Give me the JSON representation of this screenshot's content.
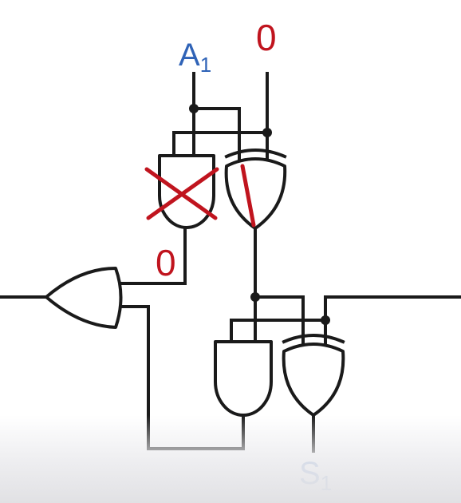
{
  "labels": {
    "input_a_main": "A",
    "input_a_sub": "1",
    "input_zero": "0",
    "and_output_zero": "0",
    "sum_main": "S",
    "sum_sub": "1"
  },
  "colors": {
    "wire": "#1a1a1a",
    "blue_label": "#2f63b7",
    "red_mark": "#c0141e"
  },
  "icons": {
    "crossed_gate": "cross-icon",
    "xor_slash": "slash-icon"
  }
}
